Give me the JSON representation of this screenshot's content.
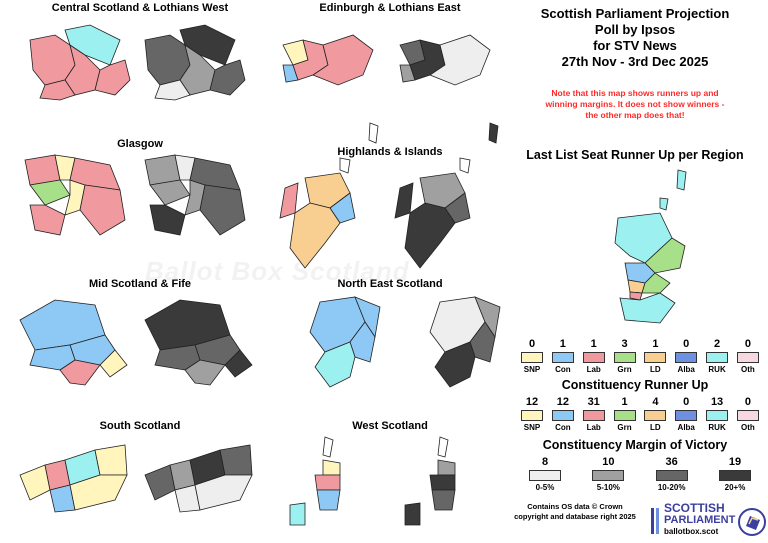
{
  "header": {
    "line1": "Scottish Parliament Projection",
    "line2": "Poll by Ipsos",
    "line3": "for STV News",
    "line4": "27th Nov - 3rd Dec 2025"
  },
  "note": {
    "line1": "Note that this map shows runners up and",
    "line2": "winning margins. It does not show winners -",
    "line3": "the other map does that!"
  },
  "watermark": "Ballot Box Scotland",
  "regions": {
    "central": "Central Scotland & Lothians West",
    "edinburgh": "Edinburgh & Lothians East",
    "glasgow": "Glasgow",
    "highlands": "Highlands & Islands",
    "mid": "Mid Scotland & Fife",
    "northeast": "North East Scotland",
    "south": "South Scotland",
    "west": "West Scotland"
  },
  "colors": {
    "SNP": "#fff5bd",
    "Con": "#8ec9f5",
    "Lab": "#f09aa0",
    "Grn": "#a8e08a",
    "LD": "#f9cf91",
    "Alba": "#6f8fe0",
    "RUK": "#9cf0f0",
    "Oth": "#f8d8e0",
    "m0_5": "#eeeeee",
    "m5_10": "#a0a0a0",
    "m10_20": "#666666",
    "m20": "#3a3a3a"
  },
  "list_runner_up": {
    "title": "Last List Seat Runner Up per Region",
    "items": [
      {
        "party": "SNP",
        "count": "0"
      },
      {
        "party": "Con",
        "count": "1"
      },
      {
        "party": "Lab",
        "count": "1"
      },
      {
        "party": "Grn",
        "count": "3"
      },
      {
        "party": "LD",
        "count": "1"
      },
      {
        "party": "Alba",
        "count": "0"
      },
      {
        "party": "RUK",
        "count": "2"
      },
      {
        "party": "Oth",
        "count": "0"
      }
    ]
  },
  "constituency_runner_up": {
    "title": "Constituency Runner Up",
    "items": [
      {
        "party": "SNP",
        "count": "12"
      },
      {
        "party": "Con",
        "count": "12"
      },
      {
        "party": "Lab",
        "count": "31"
      },
      {
        "party": "Grn",
        "count": "1"
      },
      {
        "party": "LD",
        "count": "4"
      },
      {
        "party": "Alba",
        "count": "0"
      },
      {
        "party": "RUK",
        "count": "13"
      },
      {
        "party": "Oth",
        "count": "0"
      }
    ]
  },
  "margin": {
    "title": "Constituency Margin of Victory",
    "items": [
      {
        "label": "0-5%",
        "count": "8"
      },
      {
        "label": "5-10%",
        "count": "10"
      },
      {
        "label": "10-20%",
        "count": "36"
      },
      {
        "label": "20+%",
        "count": "19"
      }
    ]
  },
  "credit": {
    "line1": "Contains OS data © Crown",
    "line2": "copyright and database right 2025"
  },
  "logo": {
    "line1": "SCOTTISH",
    "line2": "PARLIAMENT",
    "line3": "ballotbox.scot"
  }
}
